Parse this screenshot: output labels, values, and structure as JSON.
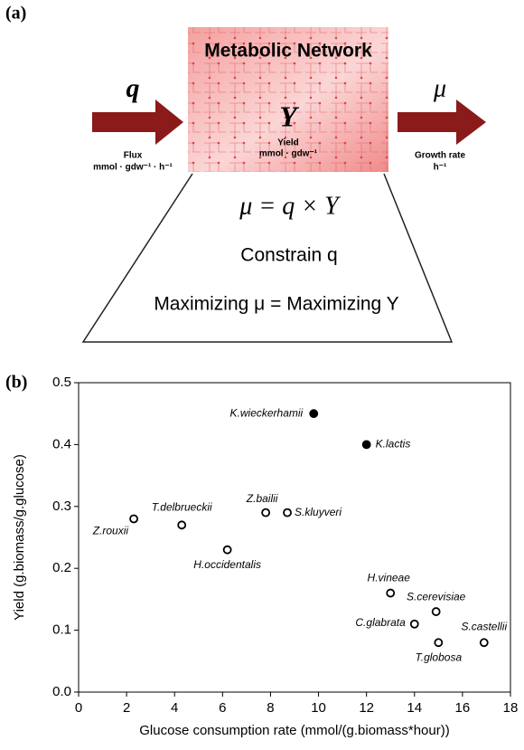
{
  "panels": {
    "a": "(a)",
    "b": "(b)"
  },
  "diagram": {
    "box_title": "Metabolic Network",
    "box_symbol": "Y",
    "box_caption": "Yield",
    "box_unit": "mmol · gdw⁻¹",
    "input_symbol": "q",
    "input_caption": "Flux",
    "input_unit": "mmol · gdw⁻¹ · h⁻¹",
    "output_symbol": "μ",
    "output_caption": "Growth rate",
    "output_unit": "h⁻¹",
    "equation": "μ = q × Y",
    "constraint": "Constrain q",
    "objective": "Maximizing  μ = Maximizing  Y"
  },
  "chart_data": {
    "type": "scatter",
    "x_label": "Glucose consumption rate (mmol/(g.biomass*hour))",
    "y_label": "Yield (g.biomass/g.glucose)",
    "labels": [
      "K.wieckerhamii",
      "K.lactis",
      "Z.rouxii",
      "T.delbrueckii",
      "Z.bailii",
      "S.kluyveri",
      "H.occidentalis",
      "H.vineae",
      "S.cerevisiae",
      "C.glabrata",
      "S.castellii",
      "T.globosa"
    ],
    "x": [
      9.8,
      12,
      2.3,
      4.3,
      7.8,
      8.7,
      6.2,
      13,
      14.9,
      14,
      16.9,
      15
    ],
    "y": [
      0.45,
      0.4,
      0.28,
      0.27,
      0.29,
      0.29,
      0.23,
      0.16,
      0.13,
      0.11,
      0.08,
      0.08
    ],
    "filled": [
      true,
      true,
      false,
      false,
      false,
      false,
      false,
      false,
      false,
      false,
      false,
      false
    ],
    "color": "#000000",
    "xlim": [
      0,
      18
    ],
    "ylim": [
      0,
      0.5
    ],
    "xticks": [
      0,
      2,
      4,
      6,
      8,
      10,
      12,
      14,
      16,
      18
    ],
    "yticks": [
      {
        "value": 0,
        "label": "0.0"
      },
      0.1,
      0.2,
      0.3,
      0.4,
      0.5
    ]
  }
}
